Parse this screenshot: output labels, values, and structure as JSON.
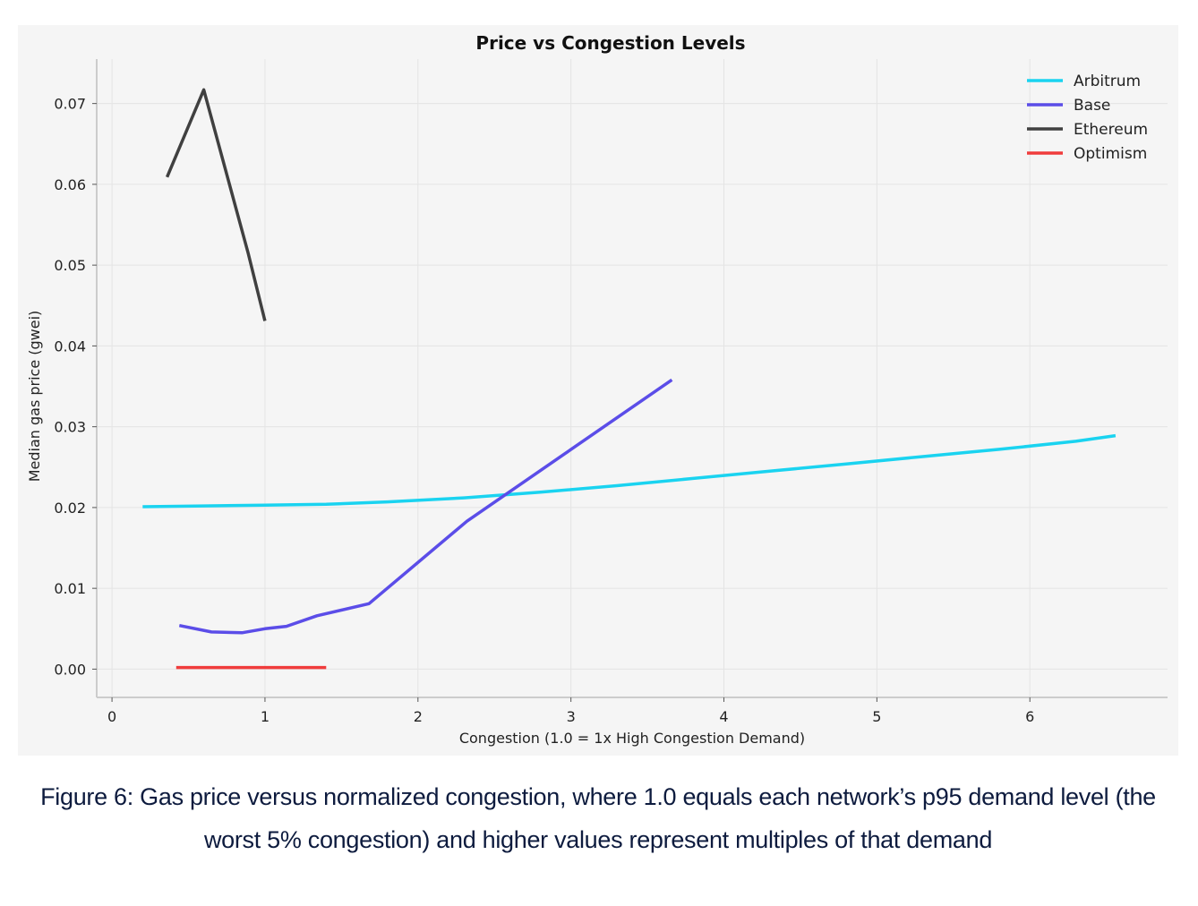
{
  "chart_data": {
    "type": "line",
    "title": "Price vs Congestion Levels",
    "xlabel": "Congestion (1.0 = 1x High Congestion Demand)",
    "ylabel": "Median gas price (gwei)",
    "xlim": [
      -0.1,
      6.9
    ],
    "ylim": [
      -0.0035,
      0.0755
    ],
    "xticks": [
      0,
      1,
      2,
      3,
      4,
      5,
      6
    ],
    "xtick_labels": [
      "0",
      "1",
      "2",
      "3",
      "4",
      "5",
      "6"
    ],
    "yticks": [
      0.0,
      0.01,
      0.02,
      0.03,
      0.04,
      0.05,
      0.06,
      0.07
    ],
    "ytick_labels": [
      "0.00",
      "0.01",
      "0.02",
      "0.03",
      "0.04",
      "0.05",
      "0.06",
      "0.07"
    ],
    "grid": true,
    "legend_position": "top-right",
    "series": [
      {
        "name": "Arbitrum",
        "color": "#1ad3f0",
        "x": [
          0.2,
          0.6,
          1.0,
          1.4,
          1.8,
          2.3,
          2.8,
          3.3,
          3.8,
          4.3,
          4.8,
          5.3,
          5.8,
          6.3,
          6.56
        ],
        "y": [
          0.0201,
          0.0202,
          0.0203,
          0.0204,
          0.0207,
          0.0212,
          0.0219,
          0.0227,
          0.0236,
          0.0245,
          0.0254,
          0.0263,
          0.0272,
          0.0282,
          0.0289
        ]
      },
      {
        "name": "Base",
        "color": "#5b4de8",
        "x": [
          0.44,
          0.65,
          0.85,
          1.0,
          1.14,
          1.34,
          1.68,
          2.32,
          3.66
        ],
        "y": [
          0.0054,
          0.0046,
          0.0045,
          0.005,
          0.0053,
          0.0066,
          0.0081,
          0.0183,
          0.0358
        ]
      },
      {
        "name": "Ethereum",
        "color": "#404040",
        "x": [
          0.36,
          0.6,
          0.89,
          1.0
        ],
        "y": [
          0.0609,
          0.0717,
          0.0515,
          0.0431
        ]
      },
      {
        "name": "Optimism",
        "color": "#f03c3c",
        "x": [
          0.42,
          0.8,
          1.1,
          1.4
        ],
        "y": [
          0.0002,
          0.0002,
          0.0002,
          0.0002
        ]
      }
    ]
  },
  "caption": "Figure 6: Gas price versus normalized congestion, where 1.0 equals each network’s p95 demand level (the worst 5% congestion) and higher values represent multiples of that demand"
}
